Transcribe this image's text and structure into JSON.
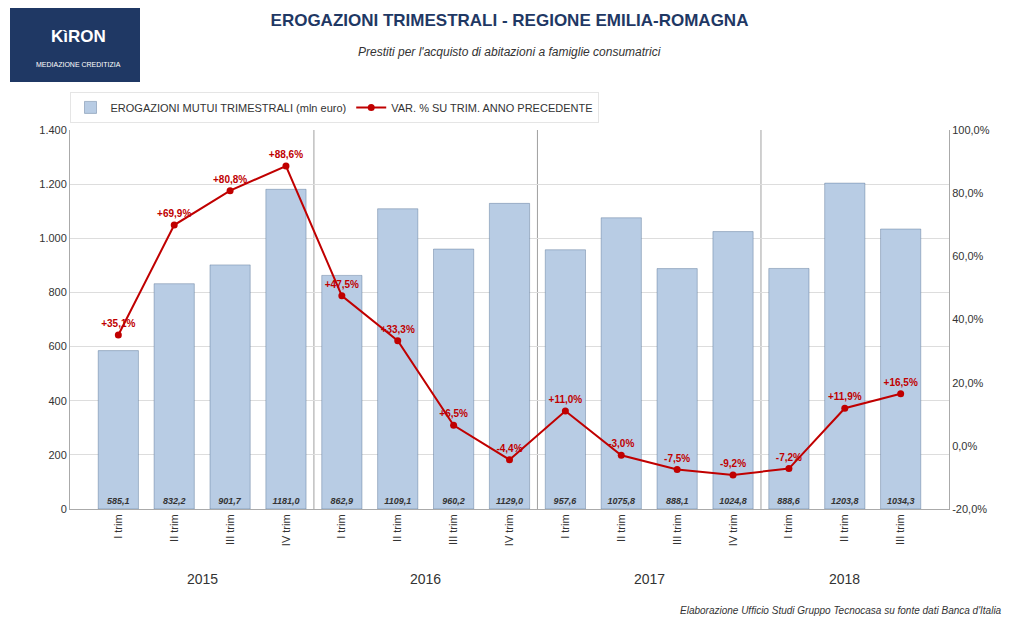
{
  "chart_data": {
    "type": "bar",
    "title": "EROGAZIONI TRIMESTRALI - REGIONE EMILIA-ROMAGNA",
    "subtitle": "Prestiti per l'acquisto di abitazioni a famiglie consumatrici",
    "categories": [
      "I trim",
      "II trim",
      "III trim",
      "IV trim",
      "I trim",
      "II trim",
      "III trim",
      "IV trim",
      "I trim",
      "II trim",
      "III trim",
      "IV trim",
      "I trim",
      "II trim",
      "III trim"
    ],
    "groups": [
      "2015",
      "2016",
      "2017",
      "2018"
    ],
    "series": [
      {
        "name": "EROGAZIONI MUTUI TRIMESTRALI (mln euro)",
        "type": "bar",
        "color": "#b8cce4",
        "values": [
          585.1,
          832.2,
          901.7,
          1181.0,
          862.9,
          1109.1,
          960.2,
          1129.0,
          957.6,
          1075.8,
          888.1,
          1024.8,
          888.6,
          1203.8,
          1034.3
        ],
        "data_labels": true,
        "value_labels": [
          "585,1",
          "832,2",
          "901,7",
          "1181,0",
          "862,9",
          "1109,1",
          "960,2",
          "1129,0",
          "957,6",
          "1075,8",
          "888,1",
          "1024,8",
          "888,6",
          "1203,8",
          "1034,3"
        ]
      },
      {
        "name": "VAR. % SU TRIM. ANNO PRECEDENTE",
        "type": "line",
        "color": "#c00000",
        "marker": "circle",
        "axis": "y2",
        "values": [
          35.1,
          69.9,
          80.8,
          88.6,
          47.5,
          33.3,
          6.5,
          -4.4,
          11.0,
          -3.0,
          -7.5,
          -9.2,
          -7.2,
          11.9,
          16.5
        ],
        "data_labels": true,
        "value_labels": [
          "+35,1%",
          "+69,9%",
          "+80,8%",
          "+88,6%",
          "+47,5%",
          "+33,3%",
          "+6,5%",
          "-4,4%",
          "+11,0%",
          "-3,0%",
          "-7,5%",
          "-9,2%",
          "-7,2%",
          "+11,9%",
          "+16,5%"
        ]
      }
    ],
    "ylim": [
      0,
      1400
    ],
    "yticks": [
      0,
      200,
      400,
      600,
      800,
      {
        "value": 1000,
        "label": "1.000"
      },
      {
        "value": 1200,
        "label": "1.200"
      },
      {
        "value": 1400,
        "label": "1.400"
      }
    ],
    "y2lim": [
      -20,
      100
    ],
    "y2ticks": [
      {
        "value": -20,
        "label": "-20,0%"
      },
      {
        "value": 0,
        "label": "0,0%"
      },
      {
        "value": 20,
        "label": "20,0%"
      },
      {
        "value": 40,
        "label": "40,0%"
      },
      {
        "value": 60,
        "label": "60,0%"
      },
      {
        "value": 80,
        "label": "80,0%"
      },
      {
        "value": 100,
        "label": "100,0%"
      }
    ],
    "grid": true,
    "legend": "top left",
    "annotations": [
      "KìRON",
      "MEDIAZIONE CREDITIZIA",
      "Elaborazione Ufficio Studi Gruppo Tecnocasa su fonte dati Banca d'Italia"
    ]
  }
}
